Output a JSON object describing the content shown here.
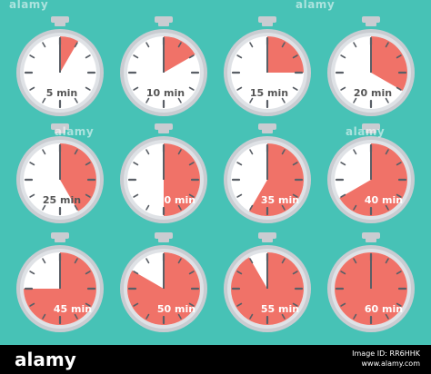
{
  "colors": {
    "background": "#47c2b6",
    "fill": "#f07268",
    "ring": "#c9ccd1",
    "ring_inner": "#dfe2e6",
    "face": "#ffffff",
    "ticks": "#5a5f66",
    "label": "#555555",
    "label_on_fill": "#ffffff"
  },
  "watermarks": [
    "alamy",
    "alamy",
    "alamy",
    "alamy"
  ],
  "timers": [
    {
      "label": "5 min",
      "minutes": 5
    },
    {
      "label": "10 min",
      "minutes": 10
    },
    {
      "label": "15 min",
      "minutes": 15
    },
    {
      "label": "20 min",
      "minutes": 20
    },
    {
      "label": "25 min",
      "minutes": 25
    },
    {
      "label": "30 min",
      "minutes": 30
    },
    {
      "label": "35 min",
      "minutes": 35
    },
    {
      "label": "40 min",
      "minutes": 40
    },
    {
      "label": "45 min",
      "minutes": 45
    },
    {
      "label": "50 min",
      "minutes": 50
    },
    {
      "label": "55 min",
      "minutes": 55
    },
    {
      "label": "60 min",
      "minutes": 60
    }
  ],
  "footer": {
    "brand": "alamy",
    "image_id_line1": "Image ID: RR6HHK",
    "image_id_line2": "www.alamy.com"
  }
}
